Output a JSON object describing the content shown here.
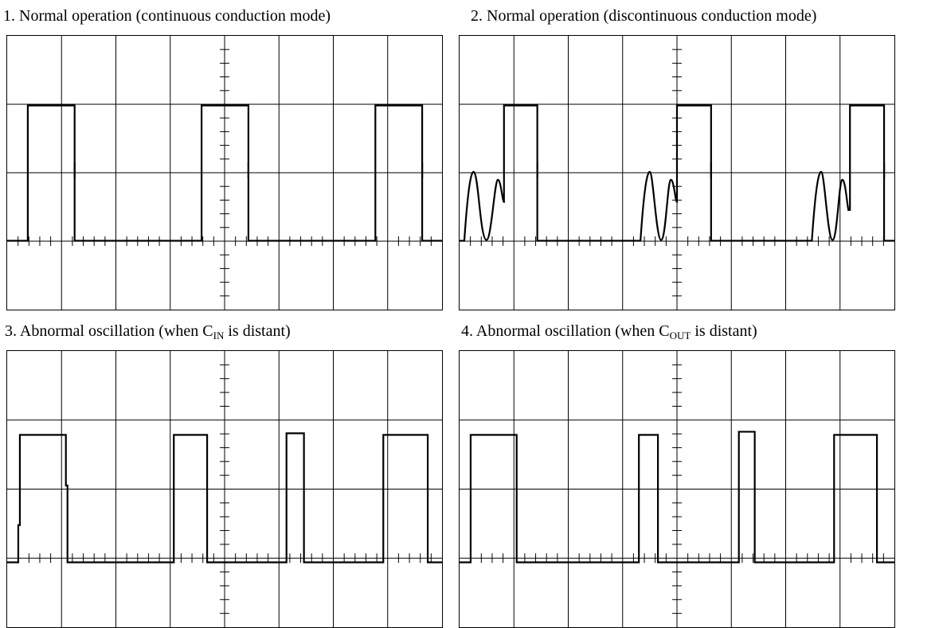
{
  "panels": [
    {
      "title": "1. Normal operation (continuous conduction mode)",
      "waveform": "switching node square wave, continuous conduction mode",
      "pulses": 3
    },
    {
      "title": "2. Normal operation (discontinuous conduction mode)",
      "waveform": "switching node square wave with ringing in off period",
      "pulses": 3
    },
    {
      "title_prefix": "3. Abnormal oscillation (when C",
      "title_sub": "IN",
      "title_suffix": " is distant)",
      "waveform": "irregular pulse widths",
      "pulses": 4
    },
    {
      "title_prefix": "4. Abnormal oscillation (when C",
      "title_sub": "OUT",
      "title_suffix": " is distant)",
      "waveform": "irregular pulse widths",
      "pulses": 4
    }
  ],
  "grid": {
    "divisions_x": 8,
    "divisions_y": 4
  },
  "colors": {
    "trace": "#000000",
    "grid": "#000000",
    "background": "#ffffff"
  }
}
